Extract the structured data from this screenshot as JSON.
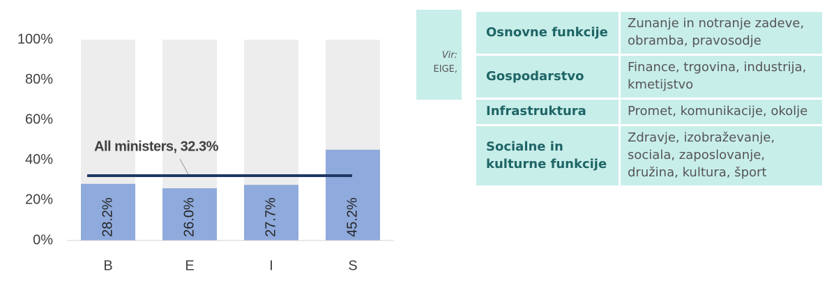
{
  "chart_data": {
    "type": "bar",
    "categories": [
      "B",
      "E",
      "I",
      "S"
    ],
    "values": [
      28.2,
      26.0,
      27.7,
      45.2
    ],
    "value_labels": [
      "28.2%",
      "26.0%",
      "27.7%",
      "45.2%"
    ],
    "color": "#8faadc",
    "track_color": "#ededed",
    "ylim": [
      0,
      100
    ],
    "yticks": [
      {
        "value": 0,
        "label": "0%"
      },
      {
        "value": 20,
        "label": "20%"
      },
      {
        "value": 40,
        "label": "40%"
      },
      {
        "value": 60,
        "label": "60%"
      },
      {
        "value": 80,
        "label": "80%"
      },
      {
        "value": 100,
        "label": "100%"
      }
    ],
    "reference": {
      "text": "All ministers, 32.3%",
      "value": 32.3,
      "color": "#1f3864"
    }
  },
  "source": {
    "label": "Vir:",
    "text": "EIGE,"
  },
  "table": {
    "rows": [
      [
        "Osnovne funkcije",
        "Zunanje in notranje zadeve, obramba, pravosodje"
      ],
      [
        "Gospodarstvo",
        "Finance, trgovina, industrija, kmetijstvo"
      ],
      [
        "Infrastruktura",
        "Promet, komunikacije, okolje"
      ],
      [
        "Socialne in kulturne funkcije",
        "Zdravje, izobraževanje, sociala, zaposlovanje, družina, kultura, šport"
      ]
    ]
  }
}
